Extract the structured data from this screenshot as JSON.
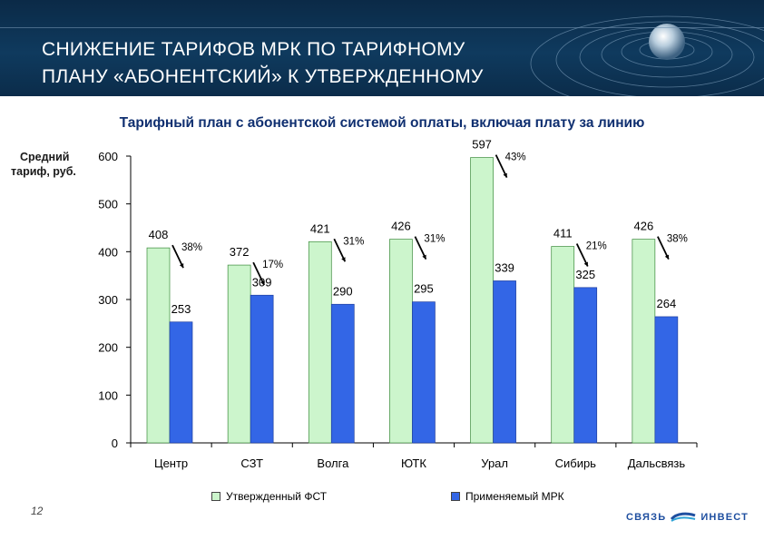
{
  "slide": {
    "title_line1": "СНИЖЕНИЕ ТАРИФОВ МРК ПО ТАРИФНОМУ",
    "title_line2": "ПЛАНУ «АБОНЕНТСКИЙ» К УТВЕРЖДЕННОМУ",
    "subtitle": "Тарифный план с абонентской системой оплаты, включая плату за линию",
    "ylabel_line1": "Средний",
    "ylabel_line2": "тариф, руб.",
    "page_number": "12",
    "logo_left": "СВЯЗЬ",
    "logo_right": "ИНВЕСТ"
  },
  "chart_data": {
    "type": "bar",
    "categories": [
      "Центр",
      "СЗТ",
      "Волга",
      "ЮТК",
      "Урал",
      "Сибирь",
      "Дальсвязь"
    ],
    "series": [
      {
        "name": "Утвержденный ФСТ",
        "values": [
          408,
          372,
          421,
          426,
          597,
          411,
          426
        ],
        "color": "#ccf5cc"
      },
      {
        "name": "Применяемый МРК",
        "values": [
          253,
          309,
          290,
          295,
          339,
          325,
          264
        ],
        "color": "#3366e6"
      }
    ],
    "reductions": [
      "38%",
      "17%",
      "31%",
      "31%",
      "43%",
      "21%",
      "38%"
    ],
    "yticks": [
      0,
      100,
      200,
      300,
      400,
      500,
      600
    ],
    "ylim": [
      0,
      600
    ],
    "grid": false,
    "legend_position": "bottom"
  }
}
